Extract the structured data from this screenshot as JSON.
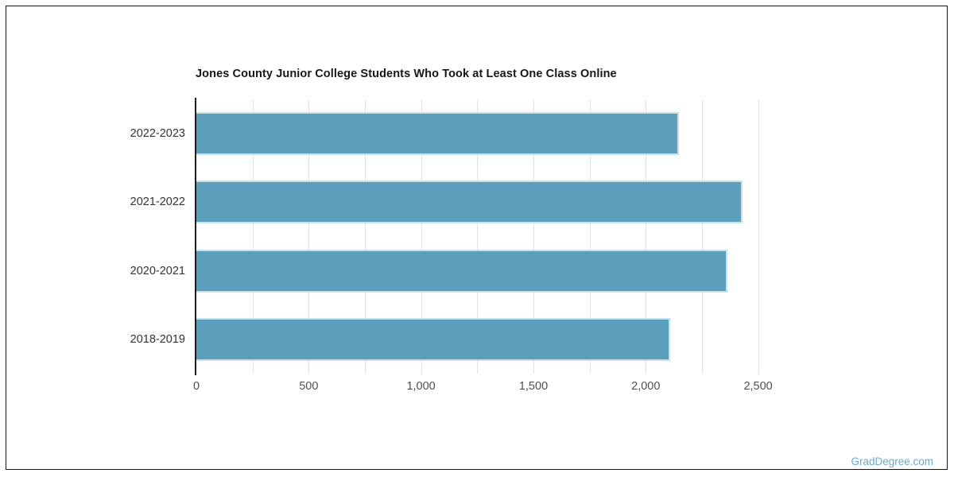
{
  "page": {
    "watermark": {
      "label": "GradDegree.com",
      "color": "#6fa8c6"
    }
  },
  "chart_data": {
    "type": "bar",
    "orientation": "horizontal",
    "title": "Jones County Junior College Students Who Took at Least One Class Online",
    "categories": [
      "2022-2023",
      "2021-2022",
      "2020-2021",
      "2018-2019"
    ],
    "values": [
      2146,
      2429,
      2364,
      2108
    ],
    "xlabel": "",
    "ylabel": "",
    "xlim": [
      0,
      2500
    ],
    "x_tick_labels": [
      "0",
      "500",
      "1,000",
      "1,500",
      "2,000",
      "2,500"
    ],
    "x_tick_values": [
      0,
      500,
      1000,
      1500,
      2000,
      2500
    ],
    "minor_gridline_interval": 250,
    "grid": true,
    "legend": "none",
    "bar_color": "#5b9fbc",
    "bar_edge_color": "#c9dfea",
    "gridline_color": "#e2e2e2",
    "axis_line_color": "#1d1d1d",
    "title_color": "#161616",
    "category_label_color": "#333333",
    "tick_label_color": "#4f4f4f"
  }
}
